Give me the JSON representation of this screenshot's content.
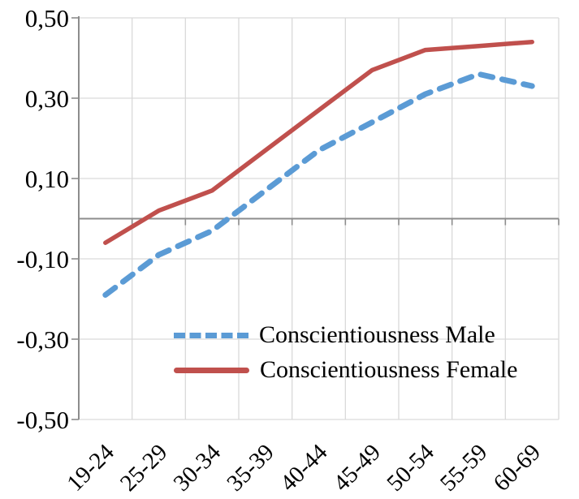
{
  "chart_data": {
    "type": "line",
    "title": "",
    "xlabel": "",
    "ylabel": "",
    "categories": [
      "19-24",
      "25-29",
      "30-34",
      "35-39",
      "40-44",
      "45-49",
      "50-54",
      "55-59",
      "60-69"
    ],
    "series": [
      {
        "name": "Conscientiousness Male",
        "color": "#5B9BD5",
        "line_style": "dashed",
        "values": [
          -0.19,
          -0.09,
          -0.03,
          0.07,
          0.17,
          0.24,
          0.31,
          0.36,
          0.33
        ]
      },
      {
        "name": "Conscientiousness Female",
        "color": "#C0504D",
        "line_style": "solid",
        "values": [
          -0.06,
          0.02,
          0.07,
          0.17,
          0.27,
          0.37,
          0.42,
          0.43,
          0.44
        ]
      }
    ],
    "ylim": [
      -0.5,
      0.5
    ],
    "yticks": [
      {
        "value": 0.5,
        "label": "0,50"
      },
      {
        "value": 0.3,
        "label": "0,30"
      },
      {
        "value": 0.1,
        "label": "0,10"
      },
      {
        "value": -0.1,
        "label": "-0,10"
      },
      {
        "value": -0.3,
        "label": "-0,30"
      },
      {
        "value": -0.5,
        "label": "-0,50"
      }
    ],
    "decimal_separator": ",",
    "grid": true,
    "legend_position": "inside-bottom-center",
    "colors": {
      "axis": "#8C8C8C",
      "grid": "#D9D9D9",
      "text": "#000000",
      "background": "#FFFFFF"
    }
  }
}
